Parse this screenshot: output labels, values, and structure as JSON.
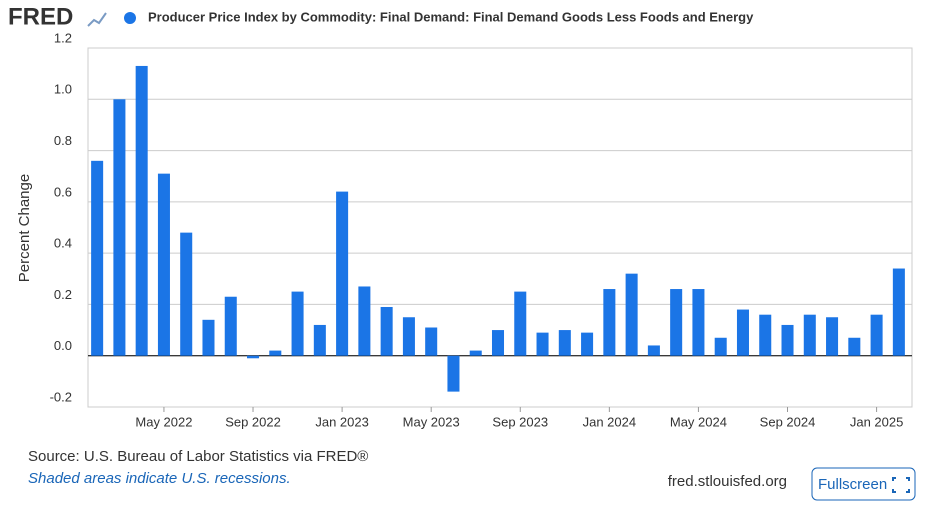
{
  "chart_data": {
    "type": "bar",
    "logo": "FRED",
    "title": "Producer Price Index by Commodity: Final Demand: Final Demand Goods Less Foods and Energy",
    "ylabel": "Percent Change",
    "source": "Source: U.S. Bureau of Labor Statistics via FRED®",
    "note": "Shaded areas indicate U.S. recessions.",
    "site": "fred.stlouisfed.org",
    "button": "Fullscreen",
    "color": "#1b75e6",
    "categories": [
      null,
      null,
      null,
      "May 2022",
      null,
      null,
      null,
      "Sep 2022",
      null,
      null,
      null,
      "Jan 2023",
      null,
      null,
      null,
      "May 2023",
      null,
      null,
      null,
      "Sep 2023",
      null,
      null,
      null,
      "Jan 2024",
      null,
      null,
      null,
      "May 2024",
      null,
      null,
      null,
      "Sep 2024",
      null,
      null,
      null,
      "Jan 2025",
      null
    ],
    "values": [
      0.76,
      1.0,
      1.13,
      0.71,
      0.48,
      0.14,
      0.23,
      -0.01,
      0.02,
      0.25,
      0.12,
      0.64,
      0.27,
      0.19,
      0.15,
      0.11,
      -0.14,
      0.02,
      0.1,
      0.25,
      0.09,
      0.1,
      0.09,
      0.26,
      0.32,
      0.04,
      0.26,
      0.26,
      0.07,
      0.18,
      0.16,
      0.12,
      0.16,
      0.15,
      0.07,
      0.16,
      0.34
    ],
    "ylim": [
      -0.2,
      1.2
    ],
    "yticks": [
      -0.2,
      {
        "value": 0,
        "label": "0.0"
      },
      0.2,
      0.4,
      0.6,
      0.8,
      {
        "value": 1,
        "label": "1.0"
      },
      1.2
    ],
    "grid": true
  }
}
